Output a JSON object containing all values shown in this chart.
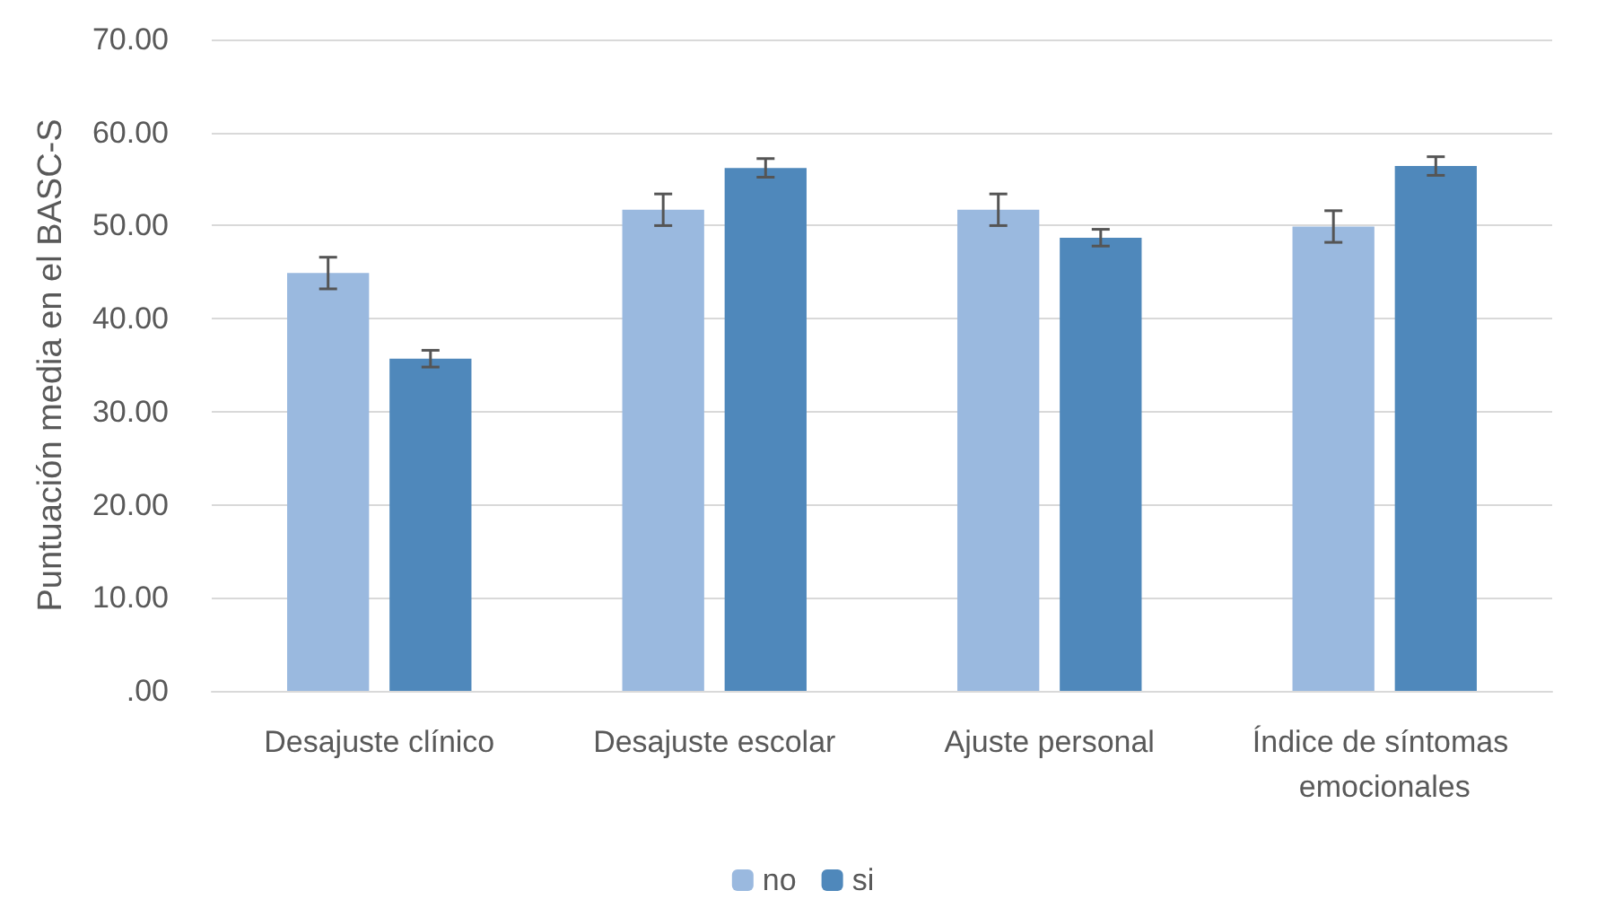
{
  "chart_data": {
    "type": "bar",
    "ylabel": "Puntuación media en el BASC-S",
    "categories": [
      "Desajuste clínico",
      "Desajuste escolar",
      "Ajuste personal",
      "Índice de síntomas emocionales"
    ],
    "series": [
      {
        "name": "no",
        "color": "#9ab9df",
        "values": [
          44.9,
          51.7,
          51.7,
          49.9
        ],
        "errors": [
          1.7,
          1.7,
          1.7,
          1.7
        ]
      },
      {
        "name": "si",
        "color": "#4f88bb",
        "values": [
          35.7,
          56.2,
          48.7,
          56.4
        ],
        "errors": [
          0.9,
          1.0,
          0.9,
          1.0
        ]
      }
    ],
    "ylim": [
      0,
      70
    ],
    "yticks": [
      {
        "value": 0,
        "label": ".00"
      },
      {
        "value": 10,
        "label": "10.00"
      },
      {
        "value": 20,
        "label": "20.00"
      },
      {
        "value": 30,
        "label": "30.00"
      },
      {
        "value": 40,
        "label": "40.00"
      },
      {
        "value": 50,
        "label": "50.00"
      },
      {
        "value": 60,
        "label": "60.00"
      },
      {
        "value": 70,
        "label": "70.00"
      }
    ],
    "grid": true,
    "legend": "bottom"
  }
}
